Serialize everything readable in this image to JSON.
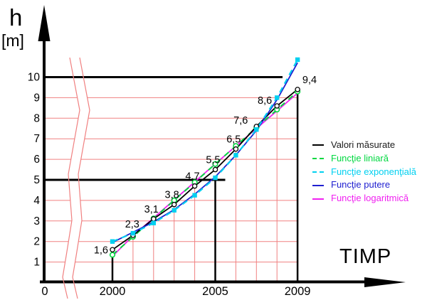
{
  "y_axis": {
    "symbol": "h",
    "unit": "[m]"
  },
  "x_axis": {
    "label": "TIMP"
  },
  "chart_data": {
    "type": "line",
    "title": "",
    "origin_label": "0",
    "x": [
      2000,
      2001,
      2002,
      2003,
      2004,
      2005,
      2006,
      2007,
      2008,
      2009
    ],
    "x_tick_years": [
      2000,
      2005,
      2009
    ],
    "y_ticks": [
      1,
      2,
      3,
      4,
      5,
      6,
      7,
      8,
      9,
      10
    ],
    "xlim": [
      2000,
      2009
    ],
    "ylim": [
      0,
      11
    ],
    "grid_color": "#f08080",
    "grid_red_h_lines": [
      1,
      2,
      3,
      4,
      6,
      7,
      8,
      9
    ],
    "black_h_lines": [
      5,
      10
    ],
    "red_drop_years": [
      2001,
      2002,
      2003,
      2004,
      2006,
      2007,
      2008
    ],
    "black_drop_years": [
      2000,
      2005,
      2009
    ],
    "axis_break_band": true,
    "point_labels": [
      "1,6",
      "2,3",
      "3,1",
      "3,8",
      "4,7",
      "5,5",
      "6,5",
      "7,6",
      "8,6",
      "9,4"
    ],
    "series": [
      {
        "name": "Valori măsurate",
        "color": "#000000",
        "text_color": "#1a1a1a",
        "style": "solid",
        "marker": "circle-open",
        "values": [
          1.6,
          2.3,
          3.1,
          3.8,
          4.7,
          5.5,
          6.5,
          7.6,
          8.6,
          9.4
        ]
      },
      {
        "name": "Funcţie liniară",
        "color": "#00d840",
        "text_color": "#00d840",
        "style": "dashed",
        "marker": "circle-open",
        "values": [
          1.35,
          2.23,
          3.12,
          4.0,
          4.88,
          5.77,
          6.65,
          7.54,
          8.42,
          9.3
        ]
      },
      {
        "name": "Funcţie exponenţială",
        "color": "#00d0f0",
        "text_color": "#00d0f0",
        "style": "dashed",
        "marker": "square",
        "values": [
          2.0,
          2.4,
          2.9,
          3.52,
          4.25,
          5.1,
          6.2,
          7.45,
          9.0,
          10.85
        ]
      },
      {
        "name": "Funcţie putere",
        "color": "#2020d0",
        "text_color": "#2020d0",
        "style": "solid",
        "marker": "none",
        "values": [
          1.95,
          2.45,
          2.95,
          3.55,
          4.3,
          5.15,
          6.2,
          7.4,
          8.9,
          10.7
        ]
      },
      {
        "name": "Funcţie logaritmică",
        "color": "#f020f0",
        "text_color": "#f020f0",
        "style": "solid",
        "marker": "none",
        "values": [
          1.28,
          2.28,
          3.15,
          4.02,
          4.9,
          5.78,
          6.64,
          7.5,
          8.36,
          9.22
        ]
      }
    ]
  }
}
